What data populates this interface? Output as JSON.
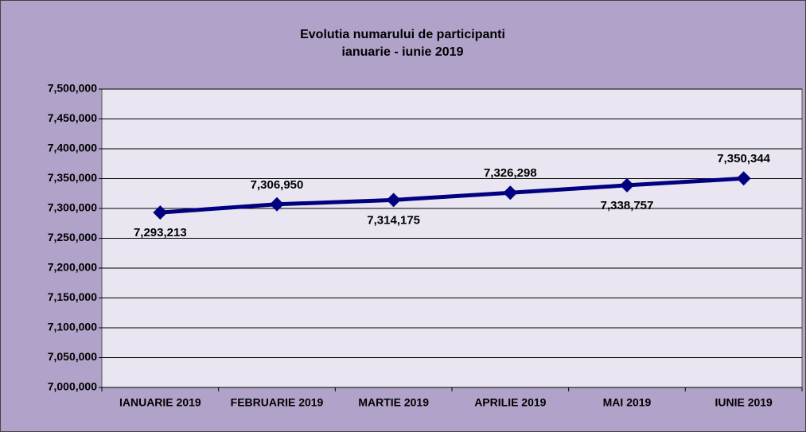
{
  "chart_data": {
    "type": "line",
    "title": "Evolutia numarului de participanti",
    "subtitle": "ianuarie  - iunie 2019",
    "categories": [
      "IANUARIE 2019",
      "FEBRUARIE 2019",
      "MARTIE 2019",
      "APRILIE 2019",
      "MAI 2019",
      "IUNIE 2019"
    ],
    "series": [
      {
        "color": "#000080",
        "values": [
          7293213,
          7306950,
          7314175,
          7326298,
          7338757,
          7350344
        ],
        "value_labels": [
          "7,293,213",
          "7,306,950",
          "7,314,175",
          "7,326,298",
          "7,338,757",
          "7,350,344"
        ]
      }
    ],
    "ylim": [
      7000000,
      7500000
    ],
    "yticks": [
      {
        "value": 7000000,
        "label": "7,000,000"
      },
      {
        "value": 7050000,
        "label": "7,050,000"
      },
      {
        "value": 7100000,
        "label": "7,100,000"
      },
      {
        "value": 7150000,
        "label": "7,150,000"
      },
      {
        "value": 7200000,
        "label": "7,200,000"
      },
      {
        "value": 7250000,
        "label": "7,250,000"
      },
      {
        "value": 7300000,
        "label": "7,300,000"
      },
      {
        "value": 7350000,
        "label": "7,350,000"
      },
      {
        "value": 7400000,
        "label": "7,400,000"
      },
      {
        "value": 7450000,
        "label": "7,450,000"
      },
      {
        "value": 7500000,
        "label": "7,500,000"
      }
    ],
    "grid": true
  }
}
